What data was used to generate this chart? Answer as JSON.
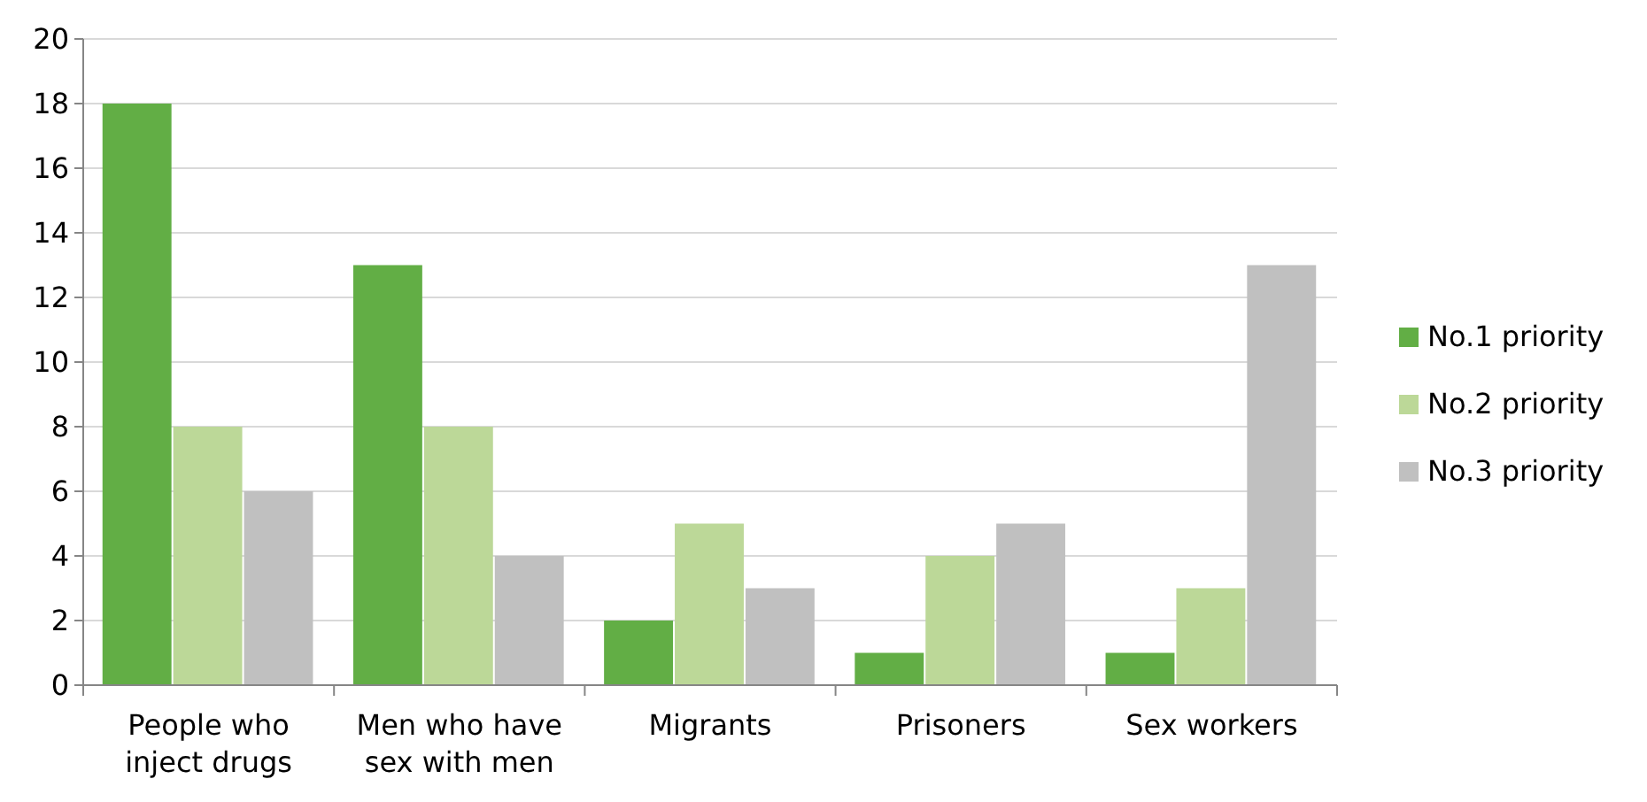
{
  "chart_data": {
    "type": "bar",
    "categories": [
      "People who inject drugs",
      "Men who have sex with men",
      "Migrants",
      "Prisoners",
      "Sex workers"
    ],
    "series": [
      {
        "name": "No.1 priority",
        "color": "#62ae45",
        "values": [
          18,
          13,
          2,
          1,
          1
        ]
      },
      {
        "name": "No.2 priority",
        "color": "#bcd898",
        "values": [
          8,
          8,
          5,
          4,
          3
        ]
      },
      {
        "name": "No.3 priority",
        "color": "#c0c0c0",
        "values": [
          6,
          4,
          3,
          5,
          13
        ]
      }
    ],
    "ylim": [
      0,
      20
    ],
    "yticks": [
      0,
      2,
      4,
      6,
      8,
      10,
      12,
      14,
      16,
      18,
      20
    ],
    "grid": "y",
    "legend": "right"
  }
}
